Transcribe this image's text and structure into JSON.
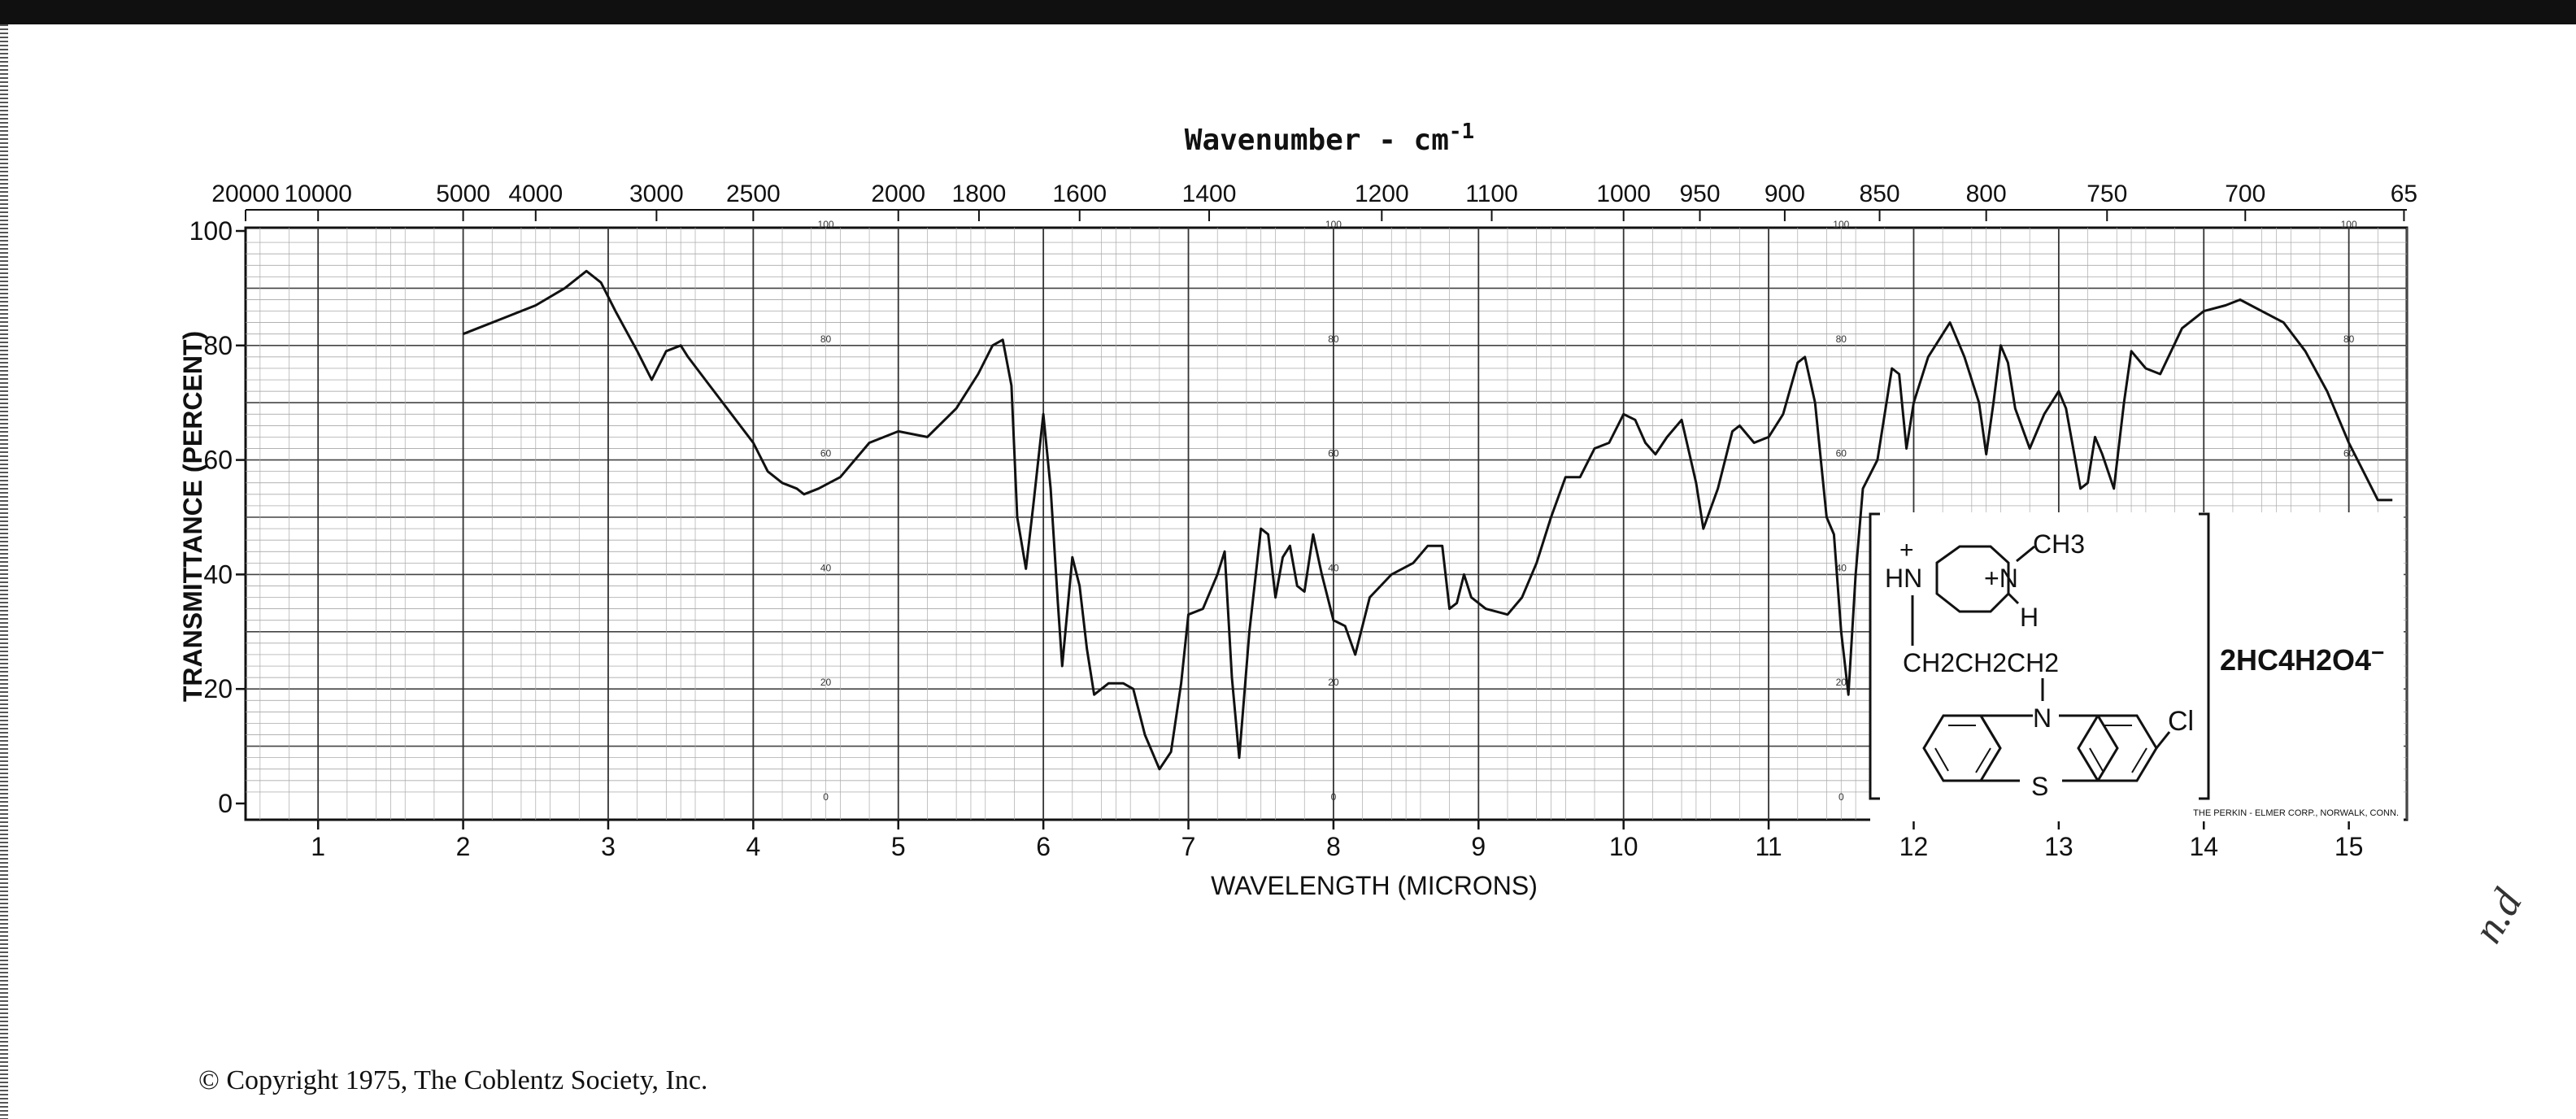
{
  "chart_data": {
    "type": "line",
    "title": "Wavenumber - cm",
    "title_superscript": "-1",
    "xlabel": "WAVELENGTH (MICRONS)",
    "ylabel": "TRANSMITTANCE (PERCENT)",
    "xlim": [
      0.5,
      15.4
    ],
    "ylim": [
      0,
      100
    ],
    "grid": true,
    "x_ticks": [
      "1",
      "2",
      "3",
      "4",
      "5",
      "6",
      "7",
      "8",
      "9",
      "10",
      "11",
      "12",
      "13",
      "14",
      "15"
    ],
    "y_ticks": [
      "0",
      "20",
      "40",
      "60",
      "80",
      "100"
    ],
    "y_tick_values": [
      0,
      20,
      40,
      60,
      80,
      100
    ],
    "y_ticks_inner": [
      "0",
      "20",
      "40",
      "60",
      "80",
      "100"
    ],
    "inner_scale_x": [
      4.5,
      8.0,
      11.5,
      15.0
    ],
    "top_ticks": [
      {
        "label": "20000",
        "micron": 0.5
      },
      {
        "label": "10000",
        "micron": 1.0
      },
      {
        "label": "5000",
        "micron": 2.0
      },
      {
        "label": "4000",
        "micron": 2.5
      },
      {
        "label": "3000",
        "micron": 3.333
      },
      {
        "label": "2500",
        "micron": 4.0
      },
      {
        "label": "2000",
        "micron": 5.0
      },
      {
        "label": "1800",
        "micron": 5.556
      },
      {
        "label": "1600",
        "micron": 6.25
      },
      {
        "label": "1400",
        "micron": 7.143
      },
      {
        "label": "1200",
        "micron": 8.333
      },
      {
        "label": "1100",
        "micron": 9.091
      },
      {
        "label": "1000",
        "micron": 10.0
      },
      {
        "label": "950",
        "micron": 10.526
      },
      {
        "label": "900",
        "micron": 11.111
      },
      {
        "label": "850",
        "micron": 11.765
      },
      {
        "label": "800",
        "micron": 12.5
      },
      {
        "label": "750",
        "micron": 13.333
      },
      {
        "label": "700",
        "micron": 14.286
      },
      {
        "label": "65",
        "micron": 15.38
      }
    ],
    "series": [
      {
        "color": "#111111",
        "points": [
          [
            2.0,
            82
          ],
          [
            2.1,
            83
          ],
          [
            2.3,
            85
          ],
          [
            2.5,
            87
          ],
          [
            2.7,
            90
          ],
          [
            2.85,
            93
          ],
          [
            2.95,
            91
          ],
          [
            3.05,
            86
          ],
          [
            3.2,
            79
          ],
          [
            3.3,
            74
          ],
          [
            3.4,
            79
          ],
          [
            3.5,
            80
          ],
          [
            3.55,
            78
          ],
          [
            3.7,
            73
          ],
          [
            3.85,
            68
          ],
          [
            4.0,
            63
          ],
          [
            4.1,
            58
          ],
          [
            4.2,
            56
          ],
          [
            4.3,
            55
          ],
          [
            4.35,
            54
          ],
          [
            4.45,
            55
          ],
          [
            4.6,
            57
          ],
          [
            4.8,
            63
          ],
          [
            5.0,
            65
          ],
          [
            5.2,
            64
          ],
          [
            5.4,
            69
          ],
          [
            5.55,
            75
          ],
          [
            5.65,
            80
          ],
          [
            5.72,
            81
          ],
          [
            5.78,
            73
          ],
          [
            5.82,
            50
          ],
          [
            5.88,
            41
          ],
          [
            5.93,
            52
          ],
          [
            6.0,
            68
          ],
          [
            6.05,
            55
          ],
          [
            6.1,
            35
          ],
          [
            6.13,
            24
          ],
          [
            6.2,
            43
          ],
          [
            6.25,
            38
          ],
          [
            6.3,
            27
          ],
          [
            6.35,
            19
          ],
          [
            6.45,
            21
          ],
          [
            6.55,
            21
          ],
          [
            6.62,
            20
          ],
          [
            6.7,
            12
          ],
          [
            6.8,
            6
          ],
          [
            6.88,
            9
          ],
          [
            6.95,
            21
          ],
          [
            7.0,
            33
          ],
          [
            7.1,
            34
          ],
          [
            7.2,
            40
          ],
          [
            7.25,
            44
          ],
          [
            7.3,
            22
          ],
          [
            7.35,
            8
          ],
          [
            7.42,
            30
          ],
          [
            7.5,
            48
          ],
          [
            7.55,
            47
          ],
          [
            7.6,
            36
          ],
          [
            7.65,
            43
          ],
          [
            7.7,
            45
          ],
          [
            7.75,
            38
          ],
          [
            7.8,
            37
          ],
          [
            7.86,
            47
          ],
          [
            7.92,
            40
          ],
          [
            8.0,
            32
          ],
          [
            8.08,
            31
          ],
          [
            8.15,
            26
          ],
          [
            8.25,
            36
          ],
          [
            8.4,
            40
          ],
          [
            8.55,
            42
          ],
          [
            8.65,
            45
          ],
          [
            8.75,
            45
          ],
          [
            8.8,
            34
          ],
          [
            8.85,
            35
          ],
          [
            8.9,
            40
          ],
          [
            8.95,
            36
          ],
          [
            9.05,
            34
          ],
          [
            9.2,
            33
          ],
          [
            9.3,
            36
          ],
          [
            9.4,
            42
          ],
          [
            9.5,
            50
          ],
          [
            9.6,
            57
          ],
          [
            9.7,
            57
          ],
          [
            9.8,
            62
          ],
          [
            9.9,
            63
          ],
          [
            10.0,
            68
          ],
          [
            10.08,
            67
          ],
          [
            10.15,
            63
          ],
          [
            10.22,
            61
          ],
          [
            10.3,
            64
          ],
          [
            10.4,
            67
          ],
          [
            10.5,
            56
          ],
          [
            10.55,
            48
          ],
          [
            10.65,
            55
          ],
          [
            10.75,
            65
          ],
          [
            10.8,
            66
          ],
          [
            10.9,
            63
          ],
          [
            11.0,
            64
          ],
          [
            11.1,
            68
          ],
          [
            11.2,
            77
          ],
          [
            11.25,
            78
          ],
          [
            11.32,
            70
          ],
          [
            11.4,
            50
          ],
          [
            11.45,
            47
          ],
          [
            11.5,
            30
          ],
          [
            11.55,
            19
          ],
          [
            11.6,
            40
          ],
          [
            11.65,
            55
          ],
          [
            11.75,
            60
          ],
          [
            11.85,
            76
          ],
          [
            11.9,
            75
          ],
          [
            11.95,
            62
          ],
          [
            12.0,
            70
          ],
          [
            12.1,
            78
          ],
          [
            12.2,
            82
          ],
          [
            12.25,
            84
          ],
          [
            12.35,
            78
          ],
          [
            12.45,
            70
          ],
          [
            12.5,
            61
          ],
          [
            12.55,
            70
          ],
          [
            12.6,
            80
          ],
          [
            12.65,
            77
          ],
          [
            12.7,
            69
          ],
          [
            12.8,
            62
          ],
          [
            12.9,
            68
          ],
          [
            13.0,
            72
          ],
          [
            13.05,
            69
          ],
          [
            13.15,
            55
          ],
          [
            13.2,
            56
          ],
          [
            13.25,
            64
          ],
          [
            13.3,
            61
          ],
          [
            13.38,
            55
          ],
          [
            13.45,
            70
          ],
          [
            13.5,
            79
          ],
          [
            13.6,
            76
          ],
          [
            13.7,
            75
          ],
          [
            13.85,
            83
          ],
          [
            14.0,
            86
          ],
          [
            14.15,
            87
          ],
          [
            14.25,
            88
          ],
          [
            14.4,
            86
          ],
          [
            14.55,
            84
          ],
          [
            14.7,
            79
          ],
          [
            14.85,
            72
          ],
          [
            15.0,
            63
          ],
          [
            15.1,
            58
          ],
          [
            15.2,
            53
          ],
          [
            15.3,
            53
          ]
        ]
      }
    ],
    "structure": {
      "left_labels": [
        "+",
        "HN",
        "+N",
        "CH3",
        "H",
        "CH2CH2CH2",
        "N",
        "S",
        "Cl"
      ],
      "salt": "2HC4H2O4",
      "salt_superscript": "−"
    },
    "footnote": "THE PERKIN - ELMER CORP., NORWALK, CONN."
  },
  "copyright": "© Copyright 1975, The Coblentz Society, Inc.",
  "annotation": "n.d"
}
